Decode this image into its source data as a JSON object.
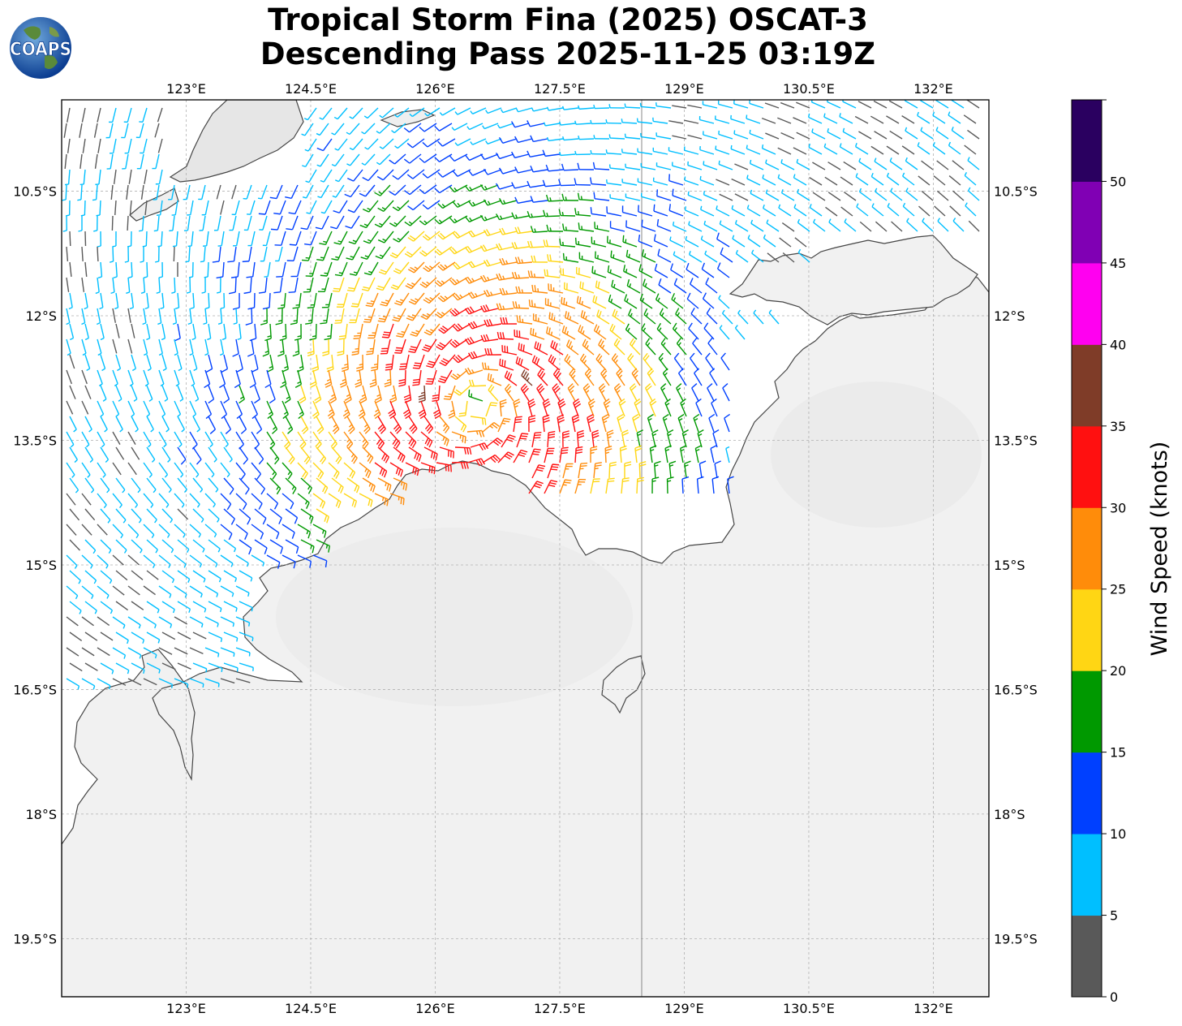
{
  "title": {
    "line1": "Tropical Storm Fina (2025) OSCAT-3",
    "line2": "Descending Pass 2025-11-25 03:19Z"
  },
  "logo": {
    "text": "COAPS",
    "icon": "globe-icon"
  },
  "map": {
    "lon_range": [
      121.5,
      132.67
    ],
    "lat_range": [
      -9.4,
      -20.2
    ],
    "lon_ticks": [
      "123°E",
      "124.5°E",
      "126°E",
      "127.5°E",
      "129°E",
      "130.5°E",
      "132°E"
    ],
    "lat_ticks": [
      "10.5°S",
      "12°S",
      "13.5°S",
      "15°S",
      "16.5°S",
      "18°S",
      "19.5°S"
    ],
    "land_color": "#f2f2f2",
    "coast_color": "#444444",
    "gridlines": true
  },
  "colorbar": {
    "title": "Wind Speed (knots)",
    "ticks": [
      "0",
      "5",
      "10",
      "15",
      "20",
      "25",
      "30",
      "35",
      "40",
      "45",
      "50"
    ],
    "bins": [
      {
        "min": 0,
        "max": 5,
        "color": "#595959"
      },
      {
        "min": 5,
        "max": 10,
        "color": "#00bfff"
      },
      {
        "min": 10,
        "max": 15,
        "color": "#0040ff"
      },
      {
        "min": 15,
        "max": 20,
        "color": "#009900"
      },
      {
        "min": 20,
        "max": 25,
        "color": "#ffd614"
      },
      {
        "min": 25,
        "max": 30,
        "color": "#ff8c0a"
      },
      {
        "min": 30,
        "max": 35,
        "color": "#ff1010"
      },
      {
        "min": 35,
        "max": 40,
        "color": "#7f3c28"
      },
      {
        "min": 40,
        "max": 45,
        "color": "#ff00f0"
      },
      {
        "min": 45,
        "max": 50,
        "color": "#8000b4"
      },
      {
        "min": 50,
        "max": 55,
        "color": "#2a0060"
      }
    ]
  },
  "storm": {
    "center_lon": 126.5,
    "center_lat": -13.1,
    "max_wind_kt": 32
  }
}
